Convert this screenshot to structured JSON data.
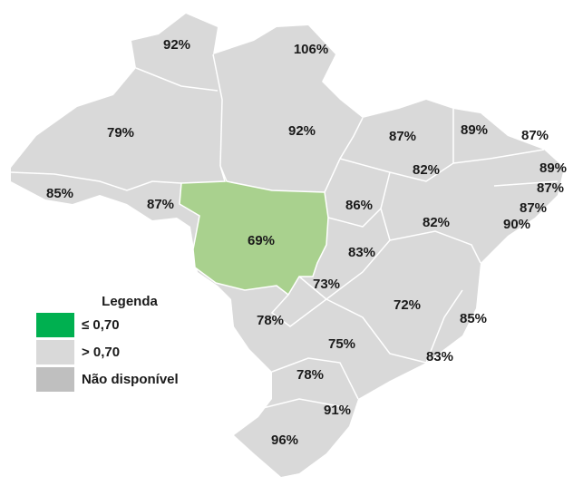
{
  "map": {
    "regions": [
      {
        "label": "92%"
      },
      {
        "label": "106%"
      },
      {
        "label": "79%"
      },
      {
        "label": "92%"
      },
      {
        "label": "87%"
      },
      {
        "label": "89%"
      },
      {
        "label": "87%"
      },
      {
        "label": "89%"
      },
      {
        "label": "87%"
      },
      {
        "label": "87%"
      },
      {
        "label": "90%"
      },
      {
        "label": "82%"
      },
      {
        "label": "85%"
      },
      {
        "label": "87%"
      },
      {
        "label": "86%"
      },
      {
        "label": "82%"
      },
      {
        "label": "69%"
      },
      {
        "label": "83%"
      },
      {
        "label": "73%"
      },
      {
        "label": "72%"
      },
      {
        "label": "85%"
      },
      {
        "label": "78%"
      },
      {
        "label": "75%"
      },
      {
        "label": "83%"
      },
      {
        "label": "78%"
      },
      {
        "label": "91%"
      },
      {
        "label": "96%"
      }
    ],
    "legend": {
      "title": "Legenda",
      "items": [
        {
          "label": "≤ 0,70",
          "color": "#00b050"
        },
        {
          "label": "> 0,70",
          "color": "#d9d9d9"
        },
        {
          "label": "Não disponível",
          "color": "#bfbfbf"
        }
      ]
    }
  }
}
